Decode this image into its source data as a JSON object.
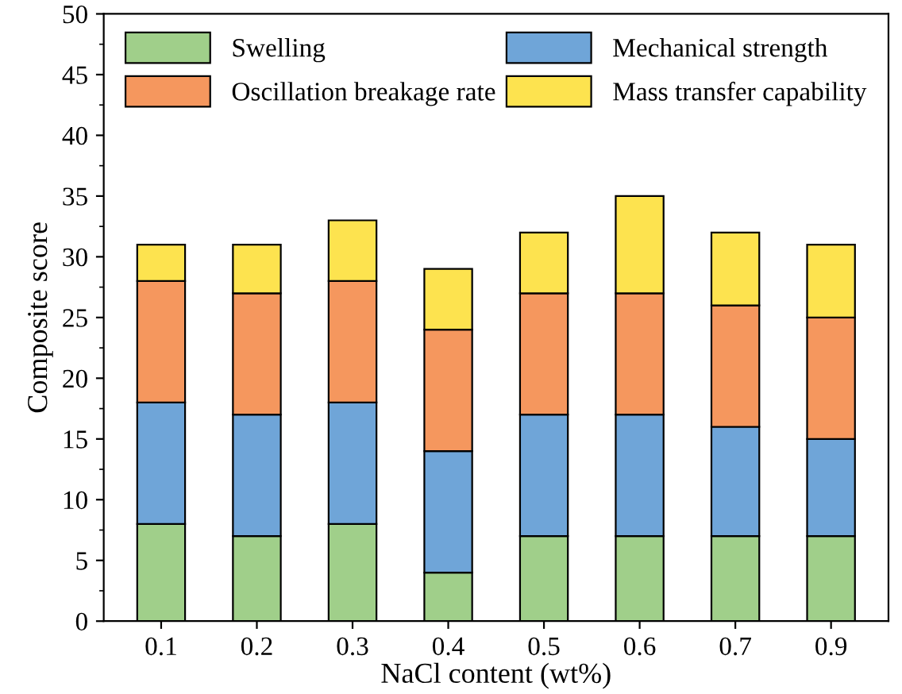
{
  "chart_data": {
    "type": "bar",
    "stacked": true,
    "xlabel": "NaCl content (wt%)",
    "ylabel": "Composite score",
    "categories": [
      "0.1",
      "0.2",
      "0.3",
      "0.4",
      "0.5",
      "0.6",
      "0.7",
      "0.9"
    ],
    "series": [
      {
        "name": "Swelling",
        "color": "#a0cf8a",
        "values": [
          8,
          7,
          8,
          4,
          7,
          7,
          7,
          7
        ]
      },
      {
        "name": "Mechanical strength",
        "color": "#6fa5d8",
        "values": [
          10,
          10,
          10,
          10,
          10,
          10,
          9,
          8
        ]
      },
      {
        "name": "Oscillation breakage rate",
        "color": "#f5975e",
        "values": [
          10,
          10,
          10,
          10,
          10,
          10,
          10,
          10
        ]
      },
      {
        "name": "Mass transfer capability",
        "color": "#fde34f",
        "values": [
          3,
          4,
          5,
          5,
          5,
          8,
          6,
          6
        ]
      }
    ],
    "ylim": [
      0,
      50
    ],
    "yticks": [
      0,
      5,
      10,
      15,
      20,
      25,
      30,
      35,
      40,
      45,
      50
    ],
    "legend": "top",
    "grid": false
  }
}
